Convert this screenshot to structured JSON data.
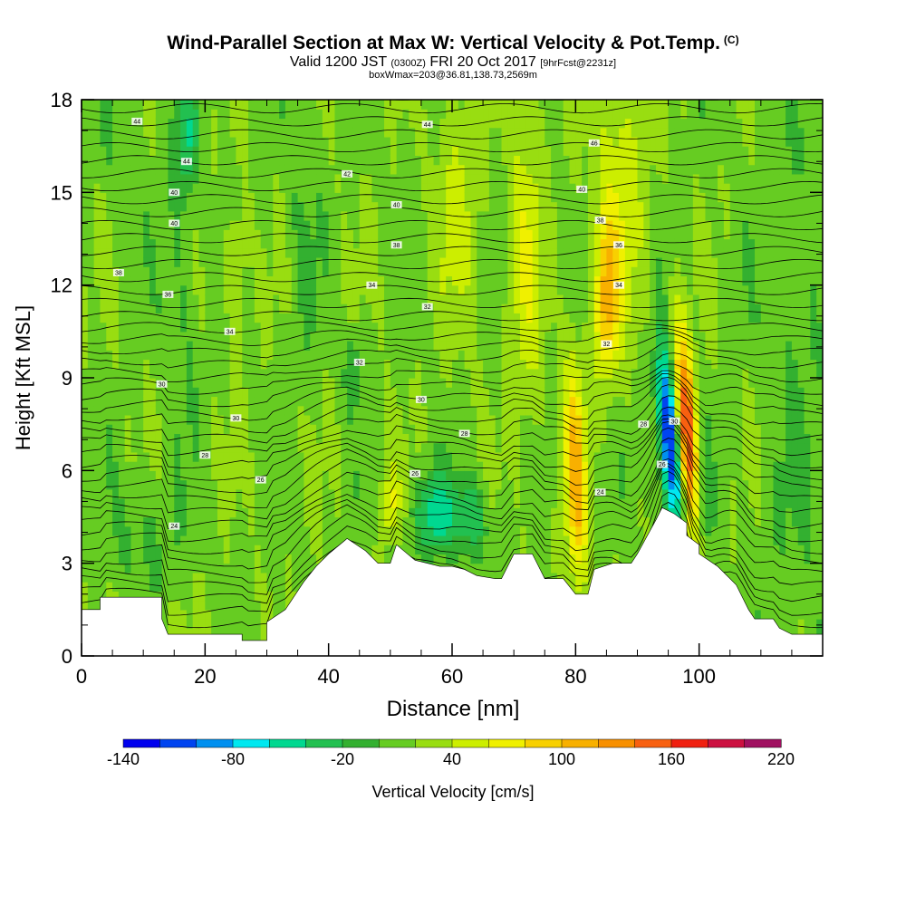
{
  "titles": {
    "main": "Wind-Parallel Section at Max W: Vertical Velocity & Pot.Temp.",
    "copyright": "(C)",
    "valid_prefix": "Valid 1200 JST",
    "utc": "(0300Z)",
    "valid_date": "FRI 20 Oct 2017",
    "forecast": "[9hrFcst@2231z]",
    "box": "boxWmax=203@36.81,138.73,2569m"
  },
  "chart_data": {
    "type": "heatmap",
    "xlabel": "Distance [nm]",
    "ylabel": "Height [Kft MSL]",
    "xlim": [
      0,
      120
    ],
    "ylim": [
      0,
      18
    ],
    "x_ticks": [
      0,
      20,
      40,
      60,
      80,
      100
    ],
    "y_ticks": [
      0,
      3,
      6,
      9,
      12,
      15,
      18
    ],
    "colorbar": {
      "label": "Vertical Velocity [cm/s]",
      "range": [
        -140,
        220
      ],
      "step": 20,
      "tick_labels": [
        "-140",
        "-80",
        "-20",
        "40",
        "100",
        "160",
        "220"
      ],
      "colors": [
        "#0000ee",
        "#0044f0",
        "#0090f0",
        "#00e8f0",
        "#00d890",
        "#22c050",
        "#33b030",
        "#66cc22",
        "#99dd11",
        "#ccee00",
        "#f0f000",
        "#f8d000",
        "#f8b000",
        "#f89000",
        "#f86010",
        "#f02010",
        "#cc1040",
        "#a01060"
      ]
    },
    "terrain_profile": {
      "x": [
        0,
        3,
        3,
        13,
        13,
        14,
        26,
        26,
        30,
        30,
        33,
        36,
        38,
        40,
        43,
        43,
        46,
        48,
        50,
        51,
        54,
        58,
        60,
        62,
        64,
        67,
        68,
        70,
        73,
        75,
        78,
        80,
        82,
        83,
        86,
        89,
        90,
        93,
        94,
        96,
        98,
        98,
        100,
        100,
        103,
        106,
        108,
        109,
        112,
        113,
        115,
        120
      ],
      "y": [
        1.5,
        1.5,
        1.9,
        1.9,
        1.2,
        0.7,
        0.7,
        0.5,
        0.5,
        1.1,
        1.5,
        2.4,
        2.9,
        3.3,
        3.8,
        3.8,
        3.4,
        3.0,
        3.0,
        3.6,
        3.1,
        2.9,
        2.9,
        2.8,
        2.6,
        2.5,
        2.5,
        3.3,
        3.3,
        2.5,
        2.5,
        2.0,
        2.0,
        2.8,
        3.0,
        3.0,
        3.3,
        4.4,
        4.8,
        4.6,
        4.3,
        3.9,
        3.6,
        3.3,
        2.9,
        2.3,
        1.5,
        1.2,
        1.2,
        0.9,
        0.7,
        0.7
      ]
    },
    "velocity_features": [
      {
        "x": 96,
        "y": 6.6,
        "value": -140,
        "sx": 1.4,
        "sy": 2.2,
        "tilt": 0.35
      },
      {
        "x": 98,
        "y": 6.8,
        "value": 203,
        "sx": 1.3,
        "sy": 2.4,
        "tilt": 0.35
      },
      {
        "x": 94.5,
        "y": 7.6,
        "value": -60,
        "sx": 1.0,
        "sy": 1.8,
        "tilt": 0.3
      },
      {
        "x": 100,
        "y": 5.0,
        "value": -60,
        "sx": 1.2,
        "sy": 1.6,
        "tilt": 0.2
      },
      {
        "x": 80,
        "y": 5.8,
        "value": 90,
        "sx": 1.2,
        "sy": 2.6,
        "tilt": 0.1
      },
      {
        "x": 85,
        "y": 11.5,
        "value": 80,
        "sx": 1.3,
        "sy": 1.6,
        "tilt": 0
      },
      {
        "x": 57,
        "y": 4.6,
        "value": -70,
        "sx": 2.2,
        "sy": 0.9,
        "tilt": 0
      },
      {
        "x": 63,
        "y": 4.5,
        "value": -50,
        "sx": 2.0,
        "sy": 0.9,
        "tilt": 0
      },
      {
        "x": 17,
        "y": 16.8,
        "value": -50,
        "sx": 1.2,
        "sy": 1.2,
        "tilt": 0
      },
      {
        "x": 44,
        "y": 9.3,
        "value": -40,
        "sx": 0.9,
        "sy": 0.8,
        "tilt": 0
      },
      {
        "x": 50,
        "y": 5.0,
        "value": 50,
        "sx": 1.0,
        "sy": 0.8,
        "tilt": 0
      },
      {
        "x": 72,
        "y": 13.0,
        "value": 40,
        "sx": 2.0,
        "sy": 4.0,
        "tilt": 0
      },
      {
        "x": 87,
        "y": 15.0,
        "value": 40,
        "sx": 3.0,
        "sy": 3.5,
        "tilt": 0
      },
      {
        "x": 25,
        "y": 12.5,
        "value": 35,
        "sx": 1.2,
        "sy": 1.5,
        "tilt": 0
      },
      {
        "x": 61,
        "y": 14.5,
        "value": 30,
        "sx": 2.5,
        "sy": 3.0,
        "tilt": 0
      },
      {
        "x": 6,
        "y": 17.0,
        "value": -10,
        "sx": 3.0,
        "sy": 2.0,
        "tilt": 0
      },
      {
        "x": 16,
        "y": 12.0,
        "value": -20,
        "sx": 2.0,
        "sy": 3.5,
        "tilt": 0
      },
      {
        "x": 36,
        "y": 13.5,
        "value": -15,
        "sx": 2.0,
        "sy": 3.0,
        "tilt": 0
      },
      {
        "x": 116,
        "y": 9.0,
        "value": -15,
        "sx": 4.0,
        "sy": 8.0,
        "tilt": 0
      },
      {
        "x": 10,
        "y": 4.0,
        "value": -20,
        "sx": 4.0,
        "sy": 1.3,
        "tilt": 0
      }
    ],
    "background_value": 15,
    "isentrope_labels": [
      {
        "x": 9,
        "y": 17.3,
        "text": "44"
      },
      {
        "x": 17,
        "y": 16.0,
        "text": "44"
      },
      {
        "x": 56,
        "y": 17.2,
        "text": "44"
      },
      {
        "x": 83,
        "y": 16.6,
        "text": "46"
      },
      {
        "x": 43,
        "y": 15.6,
        "text": "42"
      },
      {
        "x": 15,
        "y": 15.0,
        "text": "40"
      },
      {
        "x": 51,
        "y": 14.6,
        "text": "40"
      },
      {
        "x": 81,
        "y": 15.1,
        "text": "40"
      },
      {
        "x": 15,
        "y": 14.0,
        "text": "40"
      },
      {
        "x": 84,
        "y": 14.1,
        "text": "38"
      },
      {
        "x": 51,
        "y": 13.3,
        "text": "38"
      },
      {
        "x": 87,
        "y": 13.3,
        "text": "36"
      },
      {
        "x": 6,
        "y": 12.4,
        "text": "38"
      },
      {
        "x": 47,
        "y": 12.0,
        "text": "34"
      },
      {
        "x": 14,
        "y": 11.7,
        "text": "36"
      },
      {
        "x": 87,
        "y": 12.0,
        "text": "34"
      },
      {
        "x": 56,
        "y": 11.3,
        "text": "32"
      },
      {
        "x": 24,
        "y": 10.5,
        "text": "34"
      },
      {
        "x": 85,
        "y": 10.1,
        "text": "32"
      },
      {
        "x": 45,
        "y": 9.5,
        "text": "32"
      },
      {
        "x": 13,
        "y": 8.8,
        "text": "30"
      },
      {
        "x": 55,
        "y": 8.3,
        "text": "30"
      },
      {
        "x": 96,
        "y": 7.6,
        "text": "30"
      },
      {
        "x": 25,
        "y": 7.7,
        "text": "30"
      },
      {
        "x": 91,
        "y": 7.5,
        "text": "28"
      },
      {
        "x": 62,
        "y": 7.2,
        "text": "28"
      },
      {
        "x": 20,
        "y": 6.5,
        "text": "28"
      },
      {
        "x": 54,
        "y": 5.9,
        "text": "26"
      },
      {
        "x": 94,
        "y": 6.2,
        "text": "26"
      },
      {
        "x": 29,
        "y": 5.7,
        "text": "26"
      },
      {
        "x": 84,
        "y": 5.3,
        "text": "24"
      },
      {
        "x": 15,
        "y": 4.2,
        "text": "24"
      }
    ]
  }
}
